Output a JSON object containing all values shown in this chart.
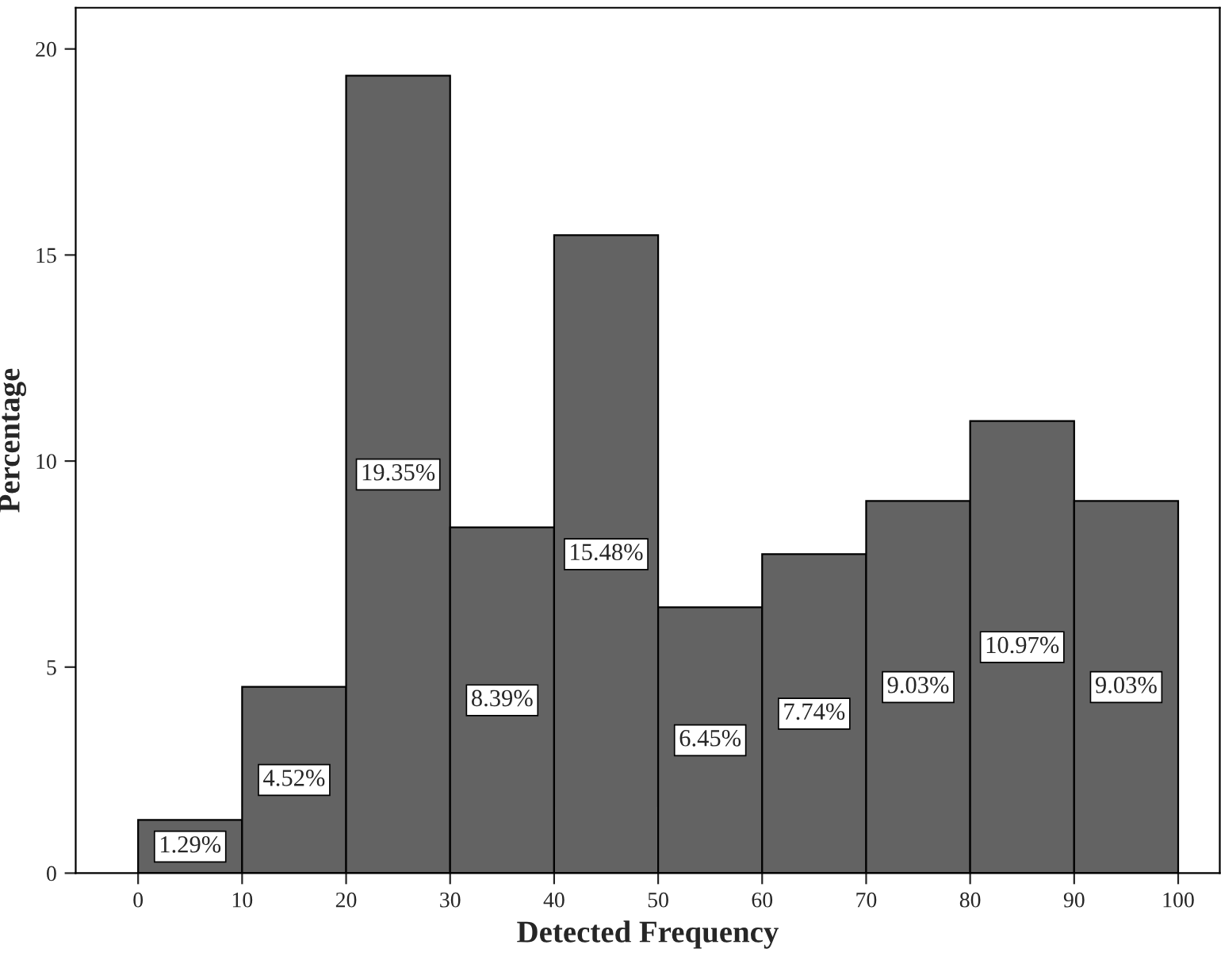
{
  "chart_data": {
    "type": "histogram",
    "xlabel": "Detected Frequency",
    "ylabel": "Percentage",
    "bins": [
      0,
      10,
      20,
      30,
      40,
      50,
      60,
      70,
      80,
      90,
      100
    ],
    "values": [
      1.29,
      4.52,
      19.35,
      8.39,
      15.48,
      6.45,
      7.74,
      9.03,
      10.97,
      9.03
    ],
    "value_labels": [
      "1.29%",
      "4.52%",
      "19.35%",
      "8.39%",
      "15.48%",
      "6.45%",
      "7.74%",
      "9.03%",
      "10.97%",
      "9.03%"
    ],
    "color": "#636363",
    "xlim": [
      -6,
      104
    ],
    "ylim": [
      0,
      21
    ],
    "xticks": [
      0,
      10,
      20,
      30,
      40,
      50,
      60,
      70,
      80,
      90,
      100
    ],
    "yticks": [
      0,
      5,
      10,
      15,
      20
    ],
    "grid": false,
    "legend": false
  }
}
